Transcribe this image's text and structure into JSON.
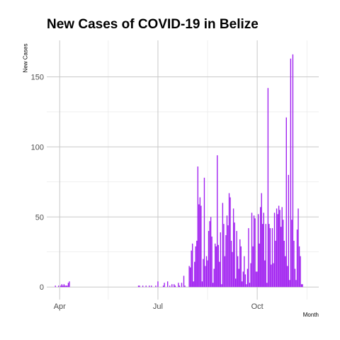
{
  "chart_data": {
    "type": "bar",
    "title": "New Cases of COVID-19 in Belize",
    "xlabel": "Month",
    "ylabel": "New Cases",
    "x_axis": {
      "type": "date",
      "range": [
        "2020-03-20",
        "2020-11-27"
      ]
    },
    "ylim": [
      -9,
      176
    ],
    "y_ticks": [
      0,
      50,
      100,
      150
    ],
    "x_ticks": [
      {
        "label": "Apr",
        "date": "2020-04-01"
      },
      {
        "label": "Jul",
        "date": "2020-07-01"
      },
      {
        "label": "Oct",
        "date": "2020-10-01"
      }
    ],
    "x_minor_gridlines": [
      "2020-05-16",
      "2020-08-16",
      "2020-11-16"
    ],
    "grid": true,
    "bar_color": "#a020f0",
    "series": [
      {
        "x": [
          "2020-03-28",
          "2020-03-31",
          "2020-04-02",
          "2020-04-03",
          "2020-04-04",
          "2020-04-05",
          "2020-04-06",
          "2020-04-07",
          "2020-04-08",
          "2020-04-09",
          "2020-04-10",
          "2020-06-13",
          "2020-06-14",
          "2020-06-17",
          "2020-06-20",
          "2020-06-23",
          "2020-06-25",
          "2020-06-29",
          "2020-07-01",
          "2020-07-06",
          "2020-07-07",
          "2020-07-10",
          "2020-07-12",
          "2020-07-14",
          "2020-07-16",
          "2020-07-17",
          "2020-07-20",
          "2020-07-21",
          "2020-07-23",
          "2020-07-25",
          "2020-07-26",
          "2020-07-30",
          "2020-07-31",
          "2020-08-01",
          "2020-08-02",
          "2020-08-03",
          "2020-08-04",
          "2020-08-05",
          "2020-08-06",
          "2020-08-07",
          "2020-08-08",
          "2020-08-09",
          "2020-08-10",
          "2020-08-11",
          "2020-08-12",
          "2020-08-13",
          "2020-08-14",
          "2020-08-15",
          "2020-08-16",
          "2020-08-17",
          "2020-08-18",
          "2020-08-19",
          "2020-08-20",
          "2020-08-21",
          "2020-08-22",
          "2020-08-23",
          "2020-08-24",
          "2020-08-25",
          "2020-08-26",
          "2020-08-27",
          "2020-08-28",
          "2020-08-29",
          "2020-08-30",
          "2020-08-31",
          "2020-09-01",
          "2020-09-02",
          "2020-09-03",
          "2020-09-04",
          "2020-09-05",
          "2020-09-06",
          "2020-09-07",
          "2020-09-08",
          "2020-09-09",
          "2020-09-10",
          "2020-09-11",
          "2020-09-12",
          "2020-09-13",
          "2020-09-14",
          "2020-09-15",
          "2020-09-16",
          "2020-09-17",
          "2020-09-18",
          "2020-09-19",
          "2020-09-20",
          "2020-09-21",
          "2020-09-22",
          "2020-09-23",
          "2020-09-24",
          "2020-09-25",
          "2020-09-26",
          "2020-09-27",
          "2020-09-28",
          "2020-09-29",
          "2020-09-30",
          "2020-10-01",
          "2020-10-02",
          "2020-10-03",
          "2020-10-04",
          "2020-10-05",
          "2020-10-06",
          "2020-10-07",
          "2020-10-08",
          "2020-10-09",
          "2020-10-10",
          "2020-10-11",
          "2020-10-12",
          "2020-10-13",
          "2020-10-14",
          "2020-10-15",
          "2020-10-16",
          "2020-10-17",
          "2020-10-18",
          "2020-10-19",
          "2020-10-20",
          "2020-10-21",
          "2020-10-22",
          "2020-10-23",
          "2020-10-24",
          "2020-10-25",
          "2020-10-26",
          "2020-10-27",
          "2020-10-28",
          "2020-10-29",
          "2020-10-30",
          "2020-10-31",
          "2020-11-01",
          "2020-11-02",
          "2020-11-03",
          "2020-11-04",
          "2020-11-05",
          "2020-11-06",
          "2020-11-07",
          "2020-11-08",
          "2020-11-09",
          "2020-11-10",
          "2020-11-11",
          "2020-11-12"
        ],
        "values": [
          1,
          1,
          1,
          2,
          1,
          2,
          1,
          1,
          1,
          3,
          4,
          1,
          1,
          1,
          1,
          1,
          1,
          1,
          4,
          1,
          3,
          4,
          1,
          2,
          2,
          1,
          3,
          1,
          3,
          8,
          1,
          15,
          14,
          26,
          31,
          4,
          18,
          29,
          33,
          86,
          59,
          64,
          58,
          4,
          20,
          78,
          15,
          22,
          19,
          40,
          47,
          50,
          36,
          3,
          13,
          31,
          29,
          94,
          30,
          18,
          39,
          2,
          60,
          45,
          22,
          37,
          51,
          44,
          67,
          64,
          33,
          25,
          56,
          46,
          6,
          40,
          22,
          13,
          34,
          29,
          4,
          11,
          22,
          9,
          2,
          13,
          42,
          3,
          17,
          53,
          29,
          51,
          49,
          11,
          11,
          52,
          31,
          57,
          67,
          45,
          53,
          19,
          45,
          3,
          142,
          45,
          42,
          16,
          42,
          17,
          53,
          33,
          56,
          52,
          58,
          55,
          43,
          57,
          48,
          33,
          22,
          121,
          15,
          80,
          5,
          163,
          48,
          166,
          33,
          13,
          5,
          41,
          56,
          29,
          22,
          2,
          2
        ]
      }
    ]
  }
}
